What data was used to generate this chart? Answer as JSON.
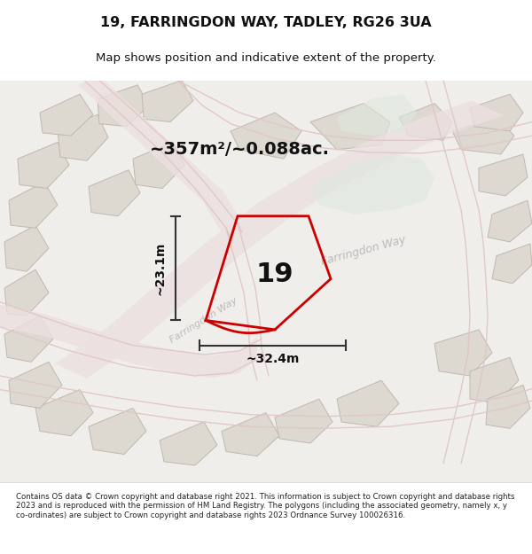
{
  "title": "19, FARRINGDON WAY, TADLEY, RG26 3UA",
  "subtitle": "Map shows position and indicative extent of the property.",
  "area_label": "~357m²/~0.088ac.",
  "plot_number": "19",
  "dim_width": "~32.4m",
  "dim_height": "~23.1m",
  "road_label_main": "Farringdon Way",
  "road_label_diag": "Farringdon Way",
  "footer": "Contains OS data © Crown copyright and database right 2021. This information is subject to Crown copyright and database rights 2023 and is reproduced with the permission of HM Land Registry. The polygons (including the associated geometry, namely x, y co-ordinates) are subject to Crown copyright and database rights 2023 Ordnance Survey 100026316.",
  "bg_color": "#f5f3f0",
  "map_bg": "#f0eeeb",
  "road_color": "#e8d8d8",
  "road_fill": "#f5f0f0",
  "building_color": "#d8d0c8",
  "building_fill": "#ddd8d0",
  "green_fill": "#e8ede8",
  "plot_outline_color": "#cc0000",
  "plot_fill": "none",
  "dim_line_color": "#333333",
  "text_color": "#111111",
  "faint_road_color": "#e0c8c8",
  "footer_color": "#222222"
}
